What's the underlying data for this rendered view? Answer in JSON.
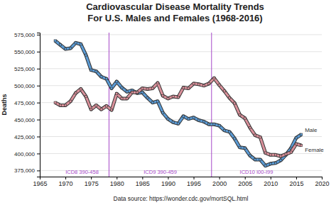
{
  "chart_data": {
    "type": "line",
    "title": "Cardiovascular Disease Mortality Trends",
    "subtitle": "For U.S. Males and Females (1968-2016)",
    "y_label": "Deaths",
    "caption": "Data source: https://wonder.cdc.gov/mortSQL.html",
    "x": [
      1968,
      1969,
      1970,
      1971,
      1972,
      1973,
      1974,
      1975,
      1976,
      1977,
      1978,
      1979,
      1980,
      1981,
      1982,
      1983,
      1984,
      1985,
      1986,
      1987,
      1988,
      1989,
      1990,
      1991,
      1992,
      1993,
      1994,
      1995,
      1996,
      1997,
      1998,
      1999,
      2000,
      2001,
      2002,
      2003,
      2004,
      2005,
      2006,
      2007,
      2008,
      2009,
      2010,
      2011,
      2012,
      2013,
      2014,
      2015,
      2016
    ],
    "series": [
      {
        "name": "Male",
        "color": "#5b9bd5",
        "marker": "square",
        "values": [
          566000,
          560000,
          554000,
          555000,
          563000,
          561000,
          545000,
          523000,
          521000,
          513000,
          510000,
          496000,
          506000,
          497000,
          491000,
          493000,
          489000,
          490000,
          482000,
          475000,
          477000,
          460000,
          451000,
          446000,
          444000,
          455000,
          451000,
          453000,
          449000,
          447000,
          443000,
          443000,
          441000,
          434000,
          432000,
          422000,
          409000,
          408000,
          397000,
          391000,
          391000,
          382000,
          385000,
          386000,
          390000,
          398000,
          408000,
          423000,
          428000
        ]
      },
      {
        "name": "Female",
        "color": "#d9909a",
        "marker": "square",
        "values": [
          475000,
          471000,
          471000,
          477000,
          489000,
          495000,
          484000,
          465000,
          471000,
          465000,
          470000,
          464000,
          488000,
          481000,
          481000,
          490000,
          490000,
          496000,
          495000,
          496000,
          504000,
          485000,
          481000,
          484000,
          483000,
          497000,
          496000,
          503000,
          502000,
          500000,
          503000,
          511000,
          501000,
          492000,
          482000,
          474000,
          457000,
          452000,
          438000,
          427000,
          424000,
          401000,
          398000,
          398000,
          396000,
          399000,
          402000,
          414000,
          412000
        ]
      }
    ],
    "periods": [
      {
        "label": "ICD8 390-458",
        "start": 1968,
        "end": 1978.5
      },
      {
        "label": "ICD9 390-459",
        "start": 1978.5,
        "end": 1998.5
      },
      {
        "label": "ICD10 I00-I99",
        "start": 1998.5,
        "end": 2016
      }
    ],
    "xlim": [
      1965,
      2020
    ],
    "xticks": [
      1965,
      1970,
      1975,
      1980,
      1985,
      1990,
      1995,
      2000,
      2005,
      2010,
      2015,
      2020
    ],
    "ylim": [
      366000,
      578000
    ],
    "yticks": [
      {
        "value": 375000,
        "label": "375,000"
      },
      {
        "value": 400000,
        "label": "400,000"
      },
      {
        "value": 425000,
        "label": "425,000"
      },
      {
        "value": 450000,
        "label": "450,000"
      },
      {
        "value": 475000,
        "label": "475,000"
      },
      {
        "value": 500000,
        "label": "500,000"
      },
      {
        "value": 525000,
        "label": "525,000"
      },
      {
        "value": 550000,
        "label": "550,000"
      },
      {
        "value": 575000,
        "label": "575,000"
      }
    ],
    "grid": true
  }
}
